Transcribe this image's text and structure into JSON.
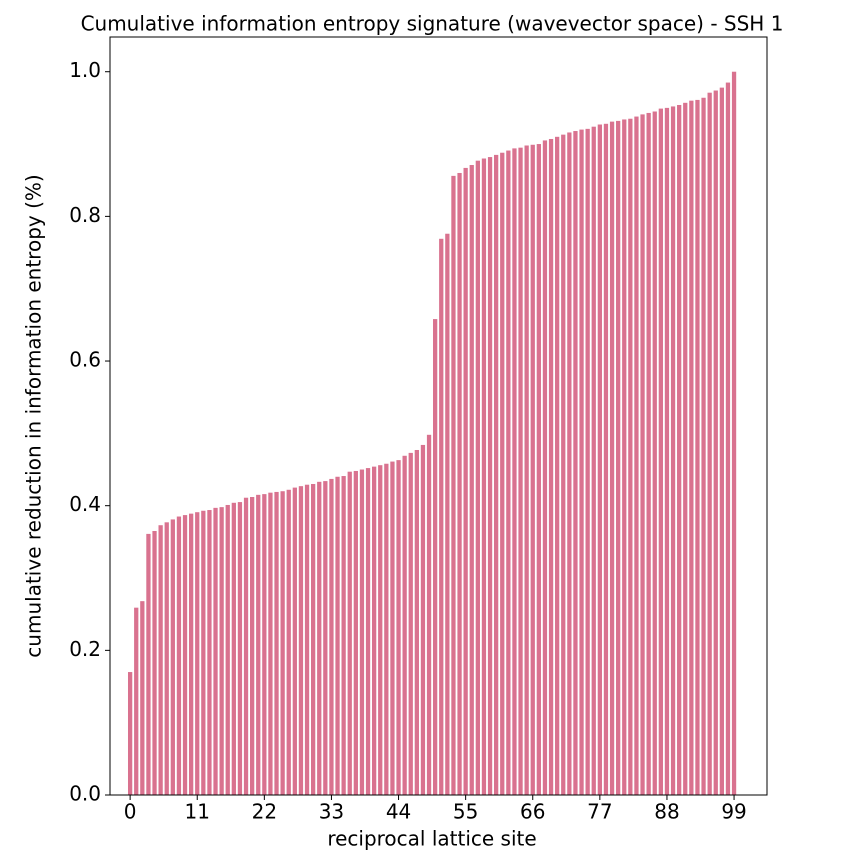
{
  "chart_data": {
    "type": "bar",
    "title": "Cumulative information entropy signature (wavevector space) - SSH 1",
    "xlabel": "reciprocal lattice site",
    "ylabel": "cumulative reduction in information entropy (%)",
    "color": "#d9728f",
    "x": [
      0,
      1,
      2,
      3,
      4,
      5,
      6,
      7,
      8,
      9,
      10,
      11,
      12,
      13,
      14,
      15,
      16,
      17,
      18,
      19,
      20,
      21,
      22,
      23,
      24,
      25,
      26,
      27,
      28,
      29,
      30,
      31,
      32,
      33,
      34,
      35,
      36,
      37,
      38,
      39,
      40,
      41,
      42,
      43,
      44,
      45,
      46,
      47,
      48,
      49,
      50,
      51,
      52,
      53,
      54,
      55,
      56,
      57,
      58,
      59,
      60,
      61,
      62,
      63,
      64,
      65,
      66,
      67,
      68,
      69,
      70,
      71,
      72,
      73,
      74,
      75,
      76,
      77,
      78,
      79,
      80,
      81,
      82,
      83,
      84,
      85,
      86,
      87,
      88,
      89,
      90,
      91,
      92,
      93,
      94,
      95,
      96,
      97,
      98,
      99
    ],
    "values": [
      0.17,
      0.259,
      0.268,
      0.361,
      0.365,
      0.373,
      0.377,
      0.381,
      0.385,
      0.387,
      0.389,
      0.391,
      0.393,
      0.394,
      0.397,
      0.398,
      0.401,
      0.404,
      0.405,
      0.411,
      0.412,
      0.415,
      0.416,
      0.418,
      0.419,
      0.42,
      0.422,
      0.425,
      0.427,
      0.429,
      0.43,
      0.433,
      0.434,
      0.437,
      0.44,
      0.441,
      0.447,
      0.448,
      0.45,
      0.452,
      0.454,
      0.456,
      0.458,
      0.461,
      0.463,
      0.469,
      0.473,
      0.477,
      0.484,
      0.498,
      0.658,
      0.769,
      0.776,
      0.856,
      0.86,
      0.867,
      0.871,
      0.877,
      0.88,
      0.882,
      0.885,
      0.888,
      0.891,
      0.894,
      0.895,
      0.898,
      0.899,
      0.9,
      0.905,
      0.907,
      0.91,
      0.913,
      0.916,
      0.918,
      0.92,
      0.921,
      0.924,
      0.927,
      0.928,
      0.931,
      0.932,
      0.934,
      0.935,
      0.938,
      0.941,
      0.943,
      0.945,
      0.949,
      0.95,
      0.952,
      0.954,
      0.957,
      0.96,
      0.961,
      0.964,
      0.971,
      0.974,
      0.978,
      0.985,
      1.0
    ],
    "xlim": [
      -3.3,
      104.4
    ],
    "ylim": [
      0,
      1.048
    ],
    "xticks": [
      0,
      11,
      22,
      33,
      44,
      55,
      66,
      77,
      88,
      99
    ],
    "yticks": [
      {
        "value": 0,
        "label": "0.0"
      },
      0.2,
      0.4,
      0.6,
      0.8,
      {
        "value": 1,
        "label": "1.0"
      }
    ]
  }
}
